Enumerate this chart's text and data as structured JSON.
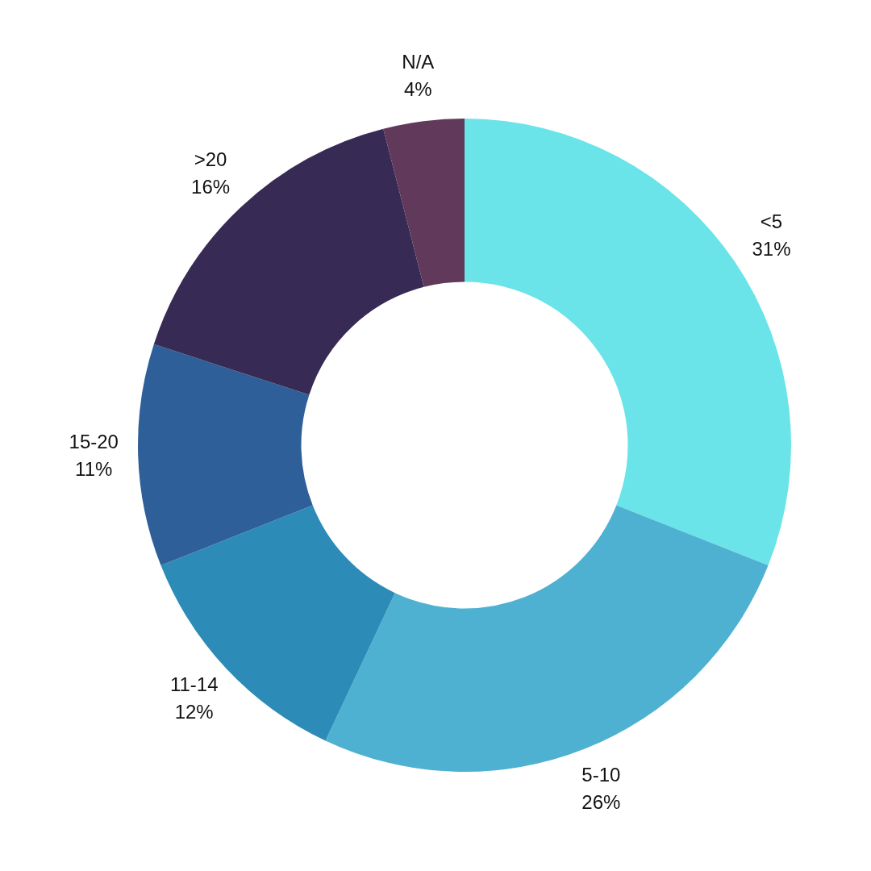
{
  "chart_data": {
    "type": "donut",
    "categories": [
      "<5",
      "5-10",
      "11-14",
      "15-20",
      ">20",
      "N/A"
    ],
    "values": [
      31,
      26,
      12,
      11,
      16,
      4
    ],
    "colors": [
      "#6ae4e8",
      "#4fb1d1",
      "#2d8bb8",
      "#2e5f98",
      "#372a55",
      "#61395a"
    ],
    "value_labels": [
      "31%",
      "26%",
      "12%",
      "11%",
      "16%",
      "4%"
    ]
  }
}
